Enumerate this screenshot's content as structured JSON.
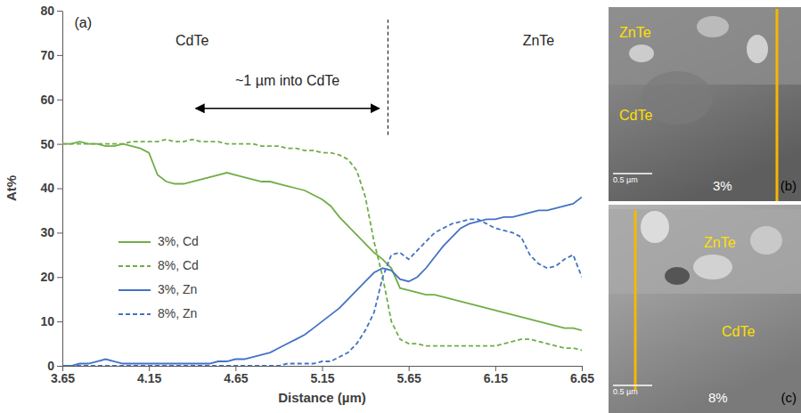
{
  "chart_data": {
    "type": "line",
    "x_label": "Distance (µm)",
    "y_label": "At%",
    "xlim": [
      3.65,
      6.65
    ],
    "xticks": [
      3.65,
      4.15,
      4.65,
      5.15,
      5.65,
      6.15,
      6.65
    ],
    "ylim": [
      0,
      80
    ],
    "yticks": [
      0,
      10,
      20,
      30,
      40,
      50,
      60,
      70,
      80
    ],
    "grid": false,
    "legend": "left",
    "annotations": [
      {
        "text": "(a)",
        "x": 3.77,
        "y": 77
      },
      {
        "text": "CdTe",
        "x": 4.4,
        "y": 73
      },
      {
        "text": "ZnTe",
        "x": 6.4,
        "y": 73
      },
      {
        "text": "~1 µm into CdTe",
        "x": 4.95,
        "y": 64
      }
    ],
    "arrow": {
      "x": [
        4.42,
        5.48
      ],
      "y": 58
    },
    "boundary": {
      "x": 5.53,
      "y": [
        52,
        78
      ]
    },
    "x": [
      3.65,
      3.7,
      3.75,
      3.8,
      3.85,
      3.9,
      3.95,
      4,
      4.05,
      4.1,
      4.15,
      4.2,
      4.25,
      4.3,
      4.35,
      4.4,
      4.45,
      4.5,
      4.55,
      4.6,
      4.65,
      4.7,
      4.75,
      4.8,
      4.85,
      4.9,
      4.95,
      5,
      5.05,
      5.1,
      5.15,
      5.2,
      5.25,
      5.3,
      5.35,
      5.4,
      5.45,
      5.5,
      5.55,
      5.6,
      5.65,
      5.7,
      5.75,
      5.8,
      5.85,
      5.9,
      5.95,
      6,
      6.05,
      6.1,
      6.15,
      6.2,
      6.25,
      6.3,
      6.35,
      6.4,
      6.45,
      6.5,
      6.55,
      6.6,
      6.65
    ],
    "series": [
      {
        "name": "3%, Cd",
        "color": "#70ad47",
        "line_style": "solid",
        "values": [
          50,
          50,
          50.5,
          50,
          50,
          49.5,
          49.5,
          50,
          49.5,
          49,
          48,
          43,
          41.5,
          41,
          41,
          41.5,
          42,
          42.5,
          43,
          43.5,
          43,
          42.5,
          42,
          41.5,
          41.5,
          41,
          40.5,
          40,
          39.5,
          38.5,
          37.5,
          36,
          33.5,
          31.5,
          29.5,
          27.5,
          25.5,
          24,
          22,
          17.5,
          17,
          16.5,
          16,
          16,
          15.5,
          15,
          14.5,
          14,
          13.5,
          13,
          12.5,
          12,
          11.5,
          11,
          10.5,
          10,
          9.5,
          9,
          8.5,
          8.5,
          8
        ]
      },
      {
        "name": "8%, Cd",
        "color": "#70ad47",
        "line_style": "dashed",
        "values": [
          50,
          50,
          50,
          50,
          50,
          50,
          50,
          50,
          50.5,
          50.5,
          50.5,
          50.5,
          51,
          50.5,
          50.5,
          51,
          50.5,
          50.5,
          50.5,
          50,
          50,
          50,
          50,
          49.5,
          49.5,
          49.5,
          49,
          49,
          48.5,
          48.5,
          48,
          48,
          47.5,
          46.5,
          44,
          38,
          28,
          20,
          10,
          6,
          5,
          5,
          4.5,
          4.5,
          4.5,
          4.5,
          4.5,
          4.5,
          4.5,
          4.5,
          4.5,
          5,
          5.5,
          6,
          6,
          5.5,
          5,
          4.5,
          4,
          4,
          3.5
        ]
      },
      {
        "name": "3%, Zn",
        "color": "#4472c4",
        "line_style": "solid",
        "values": [
          0,
          0,
          0.5,
          0.5,
          1,
          1.5,
          1,
          0.5,
          0.5,
          0.5,
          0.5,
          0.5,
          0.5,
          0.5,
          0.5,
          0.5,
          0.5,
          0.5,
          1,
          1,
          1.5,
          1.5,
          2,
          2.5,
          3,
          4,
          5,
          6,
          7,
          8.5,
          10,
          11.5,
          13,
          15,
          17,
          19,
          21,
          22,
          21.5,
          19.5,
          19,
          20,
          22,
          24.5,
          27,
          29,
          31,
          32,
          32.5,
          33,
          33,
          33.5,
          33.5,
          34,
          34.5,
          35,
          35,
          35.5,
          36,
          36.5,
          38
        ]
      },
      {
        "name": "8%, Zn",
        "color": "#4472c4",
        "line_style": "dashed",
        "values": [
          0,
          0,
          0,
          0,
          0,
          0,
          0,
          0,
          0,
          0,
          0,
          0,
          0,
          0,
          0,
          0,
          0,
          0,
          0,
          0,
          0,
          0,
          0,
          0,
          0,
          0,
          0.5,
          0.5,
          0.5,
          0.5,
          1,
          1,
          2,
          3,
          5,
          8,
          12,
          20,
          25,
          25.5,
          24,
          26,
          28,
          30,
          31,
          32,
          32.5,
          33,
          33,
          32,
          31,
          30.5,
          30,
          29,
          25,
          23,
          22,
          22.5,
          24,
          25,
          20
        ]
      }
    ]
  },
  "images": [
    {
      "panel": "(b)",
      "label": "3%",
      "regions": [
        "ZnTe",
        "CdTe"
      ],
      "scale_bar": "0.5 µm"
    },
    {
      "panel": "(c)",
      "label": "8%",
      "regions": [
        "ZnTe",
        "CdTe"
      ],
      "scale_bar": "0.5 µm"
    }
  ]
}
